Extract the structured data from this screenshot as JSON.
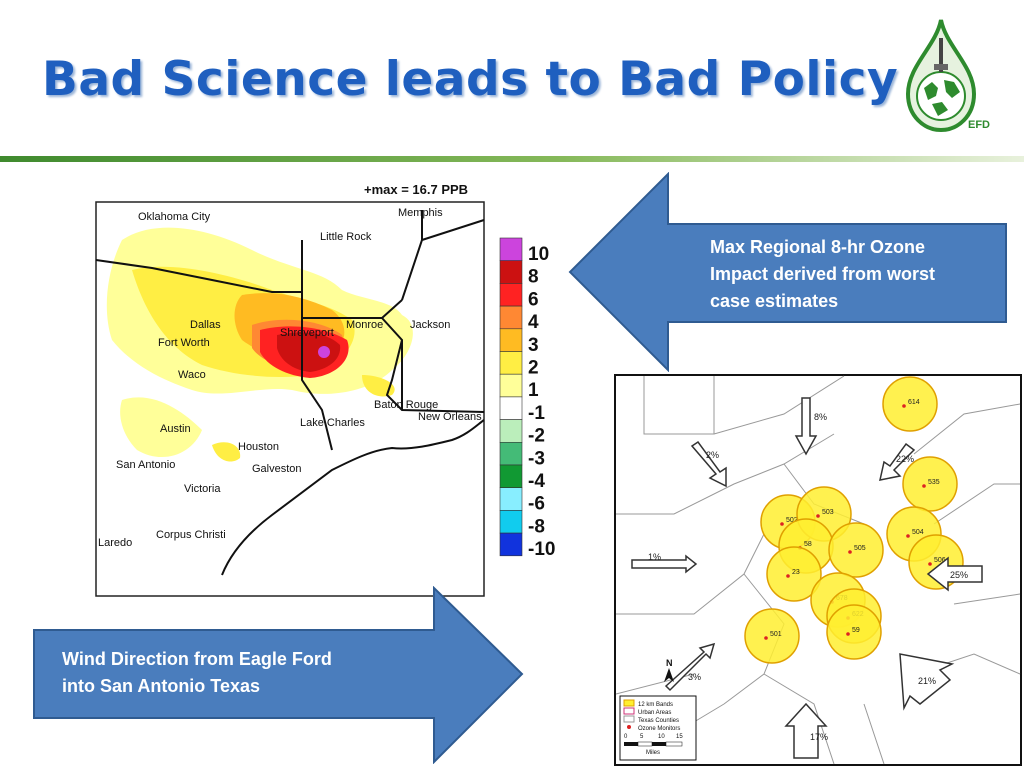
{
  "slide": {
    "title": "Bad Science leads to Bad Policy",
    "logo_label": "EFD",
    "colors": {
      "title": "#1f5fbf",
      "callout_fill": "#4a7dbd",
      "callout_border": "#2f5b91",
      "rule": "#3f8a2e"
    }
  },
  "callouts": {
    "top_right": {
      "lines": [
        "Max Regional 8-hr Ozone",
        "Impact derived from worst",
        "case estimates"
      ]
    },
    "bottom_left": {
      "lines": [
        "Wind Direction from Eagle Ford",
        "into San Antonio Texas"
      ]
    }
  },
  "ozone_map": {
    "max_label": "+max = 16.7 PPB",
    "cities": [
      "Oklahoma City",
      "Memphis",
      "Little Rock",
      "Dallas",
      "Fort Worth",
      "Shreveport",
      "Monroe",
      "Jackson",
      "Waco",
      "Baton Rouge",
      "New Orleans",
      "Lake Charles",
      "Austin",
      "Houston",
      "San Antonio",
      "Galveston",
      "Victoria",
      "Corpus Christi",
      "Laredo"
    ],
    "legend": [
      {
        "label": "10",
        "color": "#cc44dd"
      },
      {
        "label": "8",
        "color": "#cc1111"
      },
      {
        "label": "6",
        "color": "#ff2222"
      },
      {
        "label": "4",
        "color": "#ff8833"
      },
      {
        "label": "3",
        "color": "#ffbb22"
      },
      {
        "label": "2",
        "color": "#ffee44"
      },
      {
        "label": "1",
        "color": "#ffff99"
      },
      {
        "label": "-1",
        "color": "#ffffff"
      },
      {
        "label": "-2",
        "color": "#bbeebb"
      },
      {
        "label": "-3",
        "color": "#44bb77"
      },
      {
        "label": "-4",
        "color": "#119933"
      },
      {
        "label": "-6",
        "color": "#88eeff"
      },
      {
        "label": "-8",
        "color": "#11ccee"
      },
      {
        "label": "-10",
        "color": "#1133dd"
      }
    ]
  },
  "wind_map": {
    "monitors": [
      "614",
      "535",
      "504",
      "506",
      "502",
      "503",
      "58",
      "505",
      "23",
      "678",
      "622",
      "59",
      "501"
    ],
    "wind_percentages": [
      "8%",
      "2%",
      "22%",
      "1%",
      "25%",
      "3%",
      "21%",
      "17%"
    ],
    "north_label": "N",
    "legend": {
      "items": [
        "12 km Bands",
        "Urban Areas",
        "Texas Counties",
        "Ozone Monitors"
      ],
      "scale_ticks": [
        "0",
        "5",
        "10",
        "15"
      ],
      "scale_unit": "Miles"
    }
  }
}
